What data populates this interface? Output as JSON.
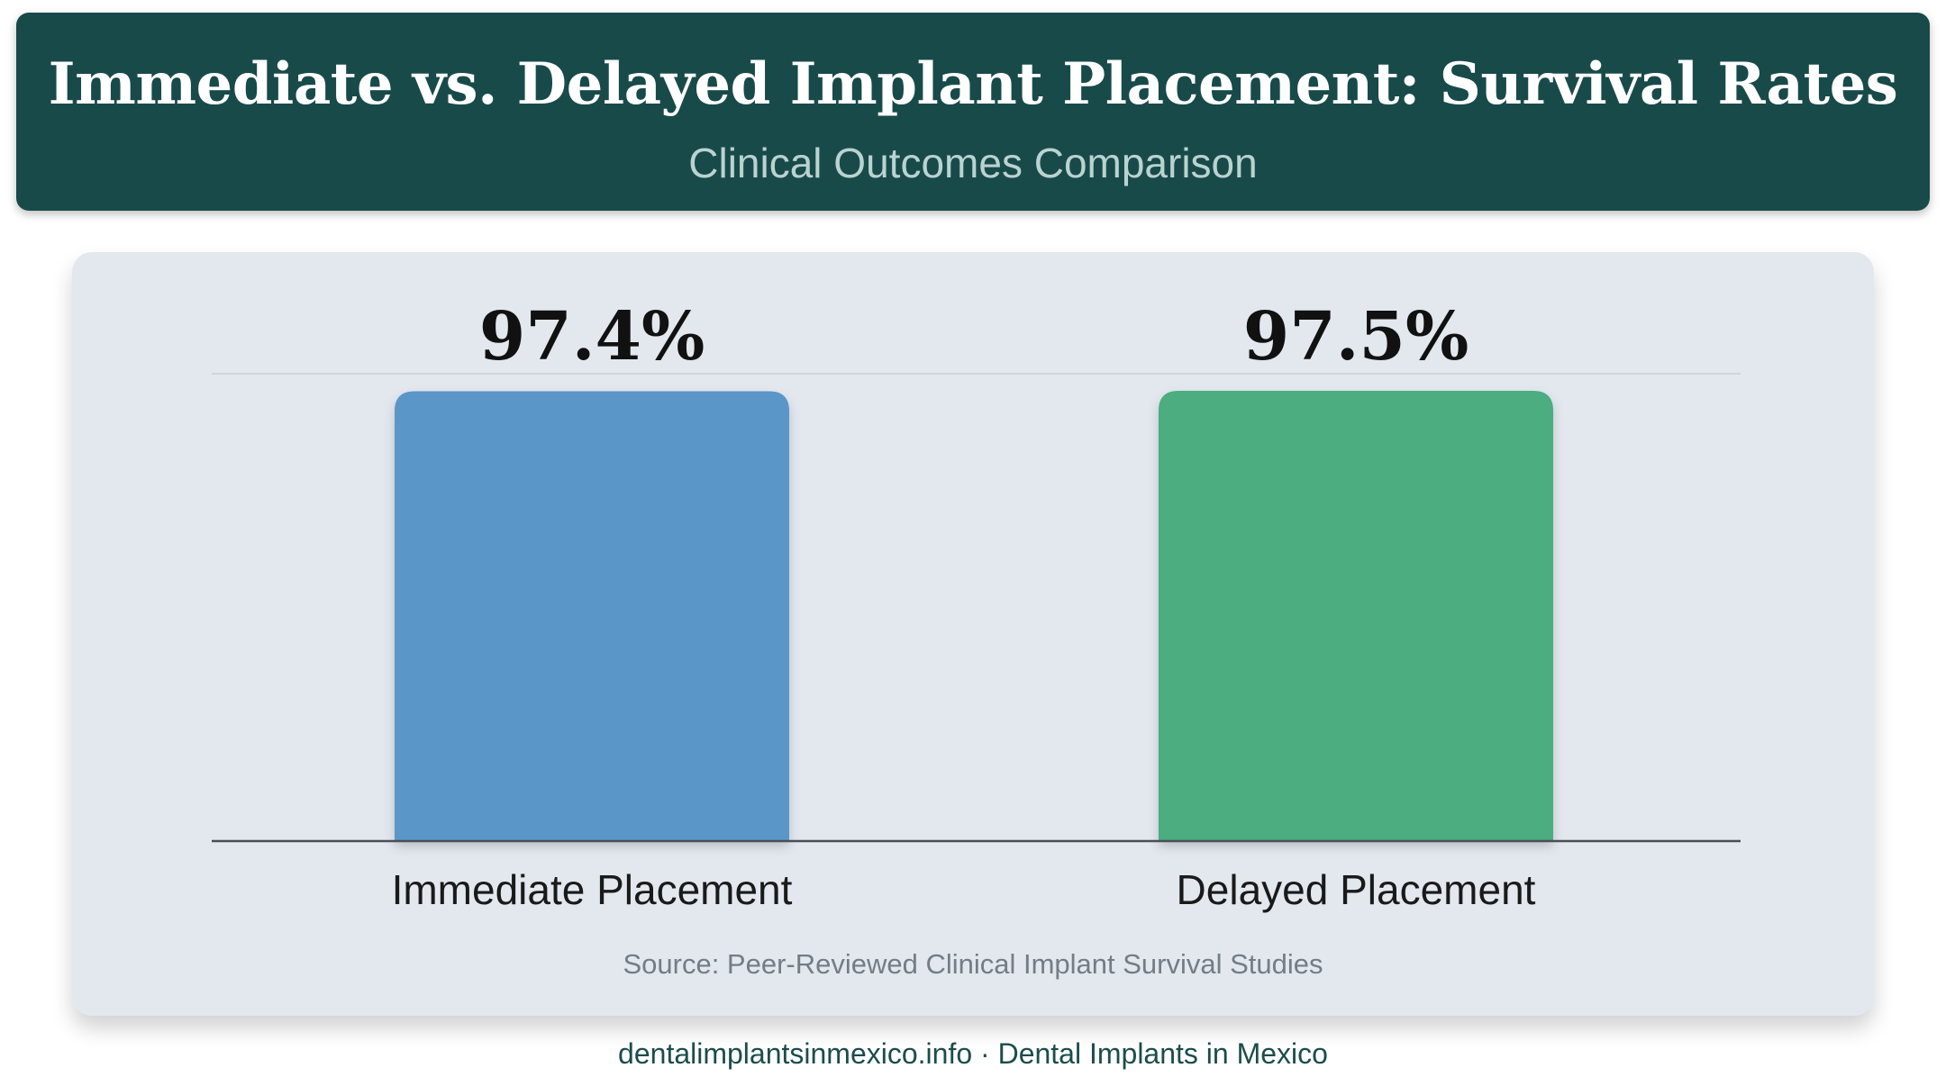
{
  "header": {
    "title": "Immediate vs. Delayed Implant Placement: Survival Rates",
    "subtitle": "Clinical Outcomes Comparison"
  },
  "chart_data": {
    "type": "bar",
    "title": "Immediate vs. Delayed Implant Placement: Survival Rates",
    "subtitle": "Clinical Outcomes Comparison",
    "categories": [
      "Immediate Placement",
      "Delayed Placement"
    ],
    "values": [
      97.4,
      97.5
    ],
    "value_labels": [
      "97.4%",
      "97.5%"
    ],
    "colors": [
      "#5a96c8",
      "#4cad80"
    ],
    "xlabel": "",
    "ylabel": "",
    "ylim": [
      0,
      100
    ],
    "grid": false,
    "legend": "none"
  },
  "source": "Source: Peer-Reviewed Clinical Implant Survival Studies",
  "footer": "dentalimplantsinmexico.info · Dental Implants in Mexico"
}
